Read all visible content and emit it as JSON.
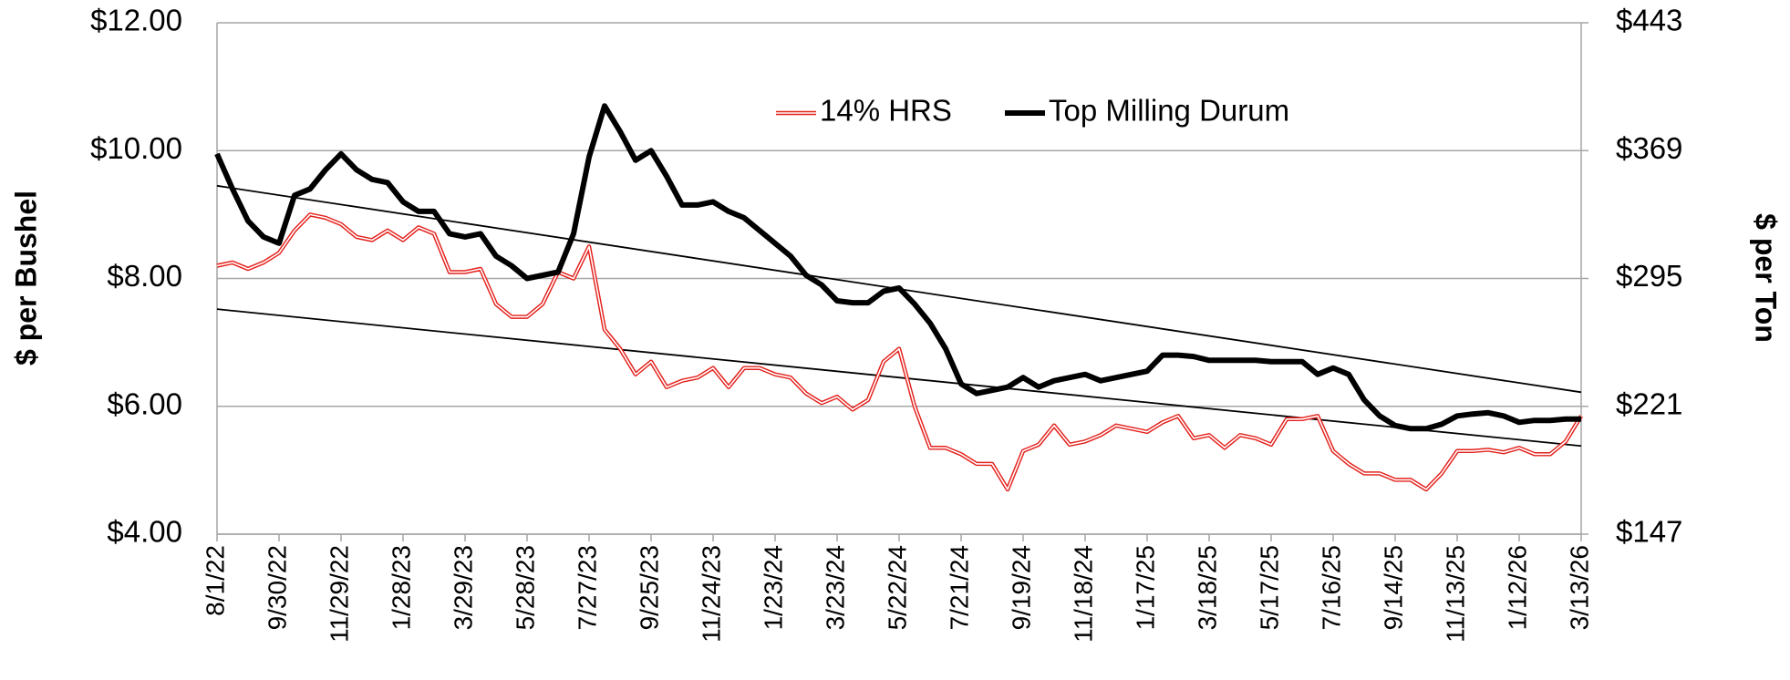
{
  "chart_data": {
    "type": "line",
    "y_label": "$ per Bushel",
    "y2_label": "$ per Ton",
    "categories": [
      "8/1/22",
      null,
      null,
      null,
      "9/30/22",
      null,
      null,
      null,
      "11/29/22",
      null,
      null,
      null,
      "1/28/23",
      null,
      null,
      null,
      "3/29/23",
      null,
      null,
      null,
      "5/28/23",
      null,
      null,
      null,
      "7/27/23",
      null,
      null,
      null,
      "9/25/23",
      null,
      null,
      null,
      "11/24/23",
      null,
      null,
      null,
      "1/23/24",
      null,
      null,
      null,
      "3/23/24",
      null,
      null,
      null,
      "5/22/24",
      null,
      null,
      null,
      "7/21/24",
      null,
      null,
      null,
      "9/19/24",
      null,
      null,
      null,
      "11/18/24",
      null,
      null,
      null,
      "1/17/25",
      null,
      null,
      null,
      "3/18/25",
      null,
      null,
      null,
      "5/17/25",
      null,
      null,
      null,
      "7/16/25",
      null,
      null,
      null,
      "9/14/25",
      null,
      null,
      null,
      "11/13/25",
      null,
      null,
      null,
      "1/12/26",
      null,
      null,
      null,
      "3/13/26"
    ],
    "series": [
      {
        "name": "14% HRS",
        "color": "#e3211c",
        "style": "double",
        "values": [
          8.2,
          8.25,
          8.15,
          8.25,
          8.4,
          8.75,
          9.0,
          8.95,
          8.85,
          8.65,
          8.6,
          8.75,
          8.6,
          8.8,
          8.7,
          8.1,
          8.1,
          8.15,
          7.6,
          7.4,
          7.4,
          7.6,
          8.1,
          8.0,
          8.5,
          7.2,
          6.9,
          6.5,
          6.7,
          6.3,
          6.4,
          6.45,
          6.6,
          6.3,
          6.6,
          6.6,
          6.5,
          6.45,
          6.2,
          6.05,
          6.15,
          5.95,
          6.1,
          6.7,
          6.9,
          6.0,
          5.35,
          5.35,
          5.25,
          5.1,
          5.1,
          4.7,
          5.3,
          5.4,
          5.7,
          5.4,
          5.45,
          5.55,
          5.7,
          5.65,
          5.6,
          5.75,
          5.85,
          5.5,
          5.55,
          5.35,
          5.55,
          5.5,
          5.4,
          5.8,
          5.8,
          5.85,
          5.3,
          5.1,
          4.95,
          4.95,
          4.85,
          4.85,
          4.7,
          4.95,
          5.3,
          5.3,
          5.32,
          5.28,
          5.35,
          5.25,
          5.25,
          5.45,
          5.85
        ]
      },
      {
        "name": "Top Milling Durum",
        "color": "#000000",
        "style": "solid",
        "values": [
          9.95,
          9.4,
          8.9,
          8.65,
          8.55,
          9.3,
          9.4,
          9.7,
          9.95,
          9.7,
          9.55,
          9.5,
          9.2,
          9.05,
          9.05,
          8.7,
          8.65,
          8.7,
          8.35,
          8.2,
          8.0,
          8.05,
          8.1,
          8.7,
          9.9,
          10.7,
          10.3,
          9.85,
          10.0,
          9.6,
          9.15,
          9.15,
          9.2,
          9.05,
          8.95,
          8.75,
          8.55,
          8.35,
          8.05,
          7.9,
          7.65,
          7.62,
          7.62,
          7.8,
          7.85,
          7.6,
          7.3,
          6.9,
          6.35,
          6.2,
          6.25,
          6.3,
          6.45,
          6.3,
          6.4,
          6.45,
          6.5,
          6.4,
          6.45,
          6.5,
          6.55,
          6.8,
          6.8,
          6.78,
          6.72,
          6.72,
          6.72,
          6.72,
          6.7,
          6.7,
          6.7,
          6.5,
          6.6,
          6.5,
          6.1,
          5.85,
          5.7,
          5.65,
          5.65,
          5.72,
          5.85,
          5.88,
          5.9,
          5.85,
          5.75,
          5.78,
          5.78,
          5.8,
          5.8
        ]
      }
    ],
    "trend_lines": [
      {
        "values": [
          9.45,
          6.22
        ]
      },
      {
        "values": [
          7.52,
          5.38
        ]
      }
    ],
    "ylim": [
      4,
      12
    ],
    "yticks": [
      {
        "value": 4,
        "label": "$4.00"
      },
      {
        "value": 6,
        "label": "$6.00"
      },
      {
        "value": 8,
        "label": "$8.00"
      },
      {
        "value": 10,
        "label": "$10.00"
      },
      {
        "value": 12,
        "label": "$12.00"
      }
    ],
    "y2lim": [
      147,
      443
    ],
    "y2ticks": [
      {
        "value": 147,
        "label": "$147"
      },
      {
        "value": 221,
        "label": "$221"
      },
      {
        "value": 295,
        "label": "$295"
      },
      {
        "value": 369,
        "label": "$369"
      },
      {
        "value": 443,
        "label": "$443"
      }
    ],
    "grid": true,
    "legend": "top"
  }
}
